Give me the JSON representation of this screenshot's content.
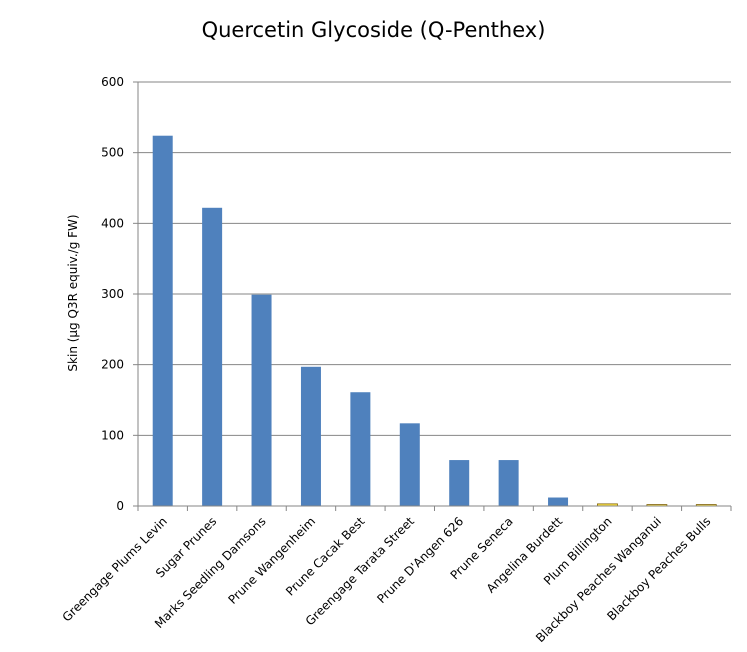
{
  "chart_data": {
    "type": "bar",
    "title": "Quercetin Glycoside (Q-Penthex)",
    "ylabel": "Skin (µg Q3R equiv./g FW)",
    "xlabel": "",
    "ylim": [
      0,
      600
    ],
    "yticks": [
      0,
      100,
      200,
      300,
      400,
      500,
      600
    ],
    "grid": true,
    "legend": "none",
    "categories": [
      "Greengage Plums Levin",
      "Sugar Prunes",
      "Marks Seedling Damsons",
      "Prune Wangenheim",
      "Prune Cacak Best",
      "Greengage Tarata Street",
      "Prune D'Angen 626",
      "Prune Seneca",
      "Angelina Burdett",
      "Plum Billington",
      "Blackboy Peaches Wanganui",
      "Blackboy Peaches Bulls"
    ],
    "values": [
      524,
      422,
      299,
      197,
      161,
      117,
      65,
      65,
      12,
      3,
      2,
      2
    ],
    "bar_colors": [
      "#4F81BD",
      "#4F81BD",
      "#4F81BD",
      "#4F81BD",
      "#4F81BD",
      "#4F81BD",
      "#4F81BD",
      "#4F81BD",
      "#4F81BD",
      "#FFE74C",
      "#FFE74C",
      "#FFE74C"
    ],
    "bar_outline": [
      "none",
      "none",
      "none",
      "none",
      "none",
      "none",
      "none",
      "none",
      "none",
      "#7F6000",
      "#7F6000",
      "#7F6000"
    ]
  }
}
